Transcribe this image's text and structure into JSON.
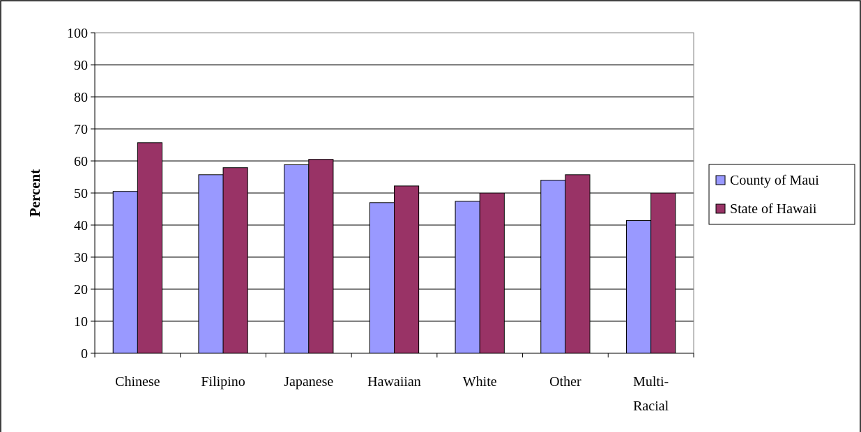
{
  "chart_data": {
    "type": "bar",
    "categories": [
      "Chinese",
      "Filipino",
      "Japanese",
      "Hawaiian",
      "White",
      "Other",
      "Multi-Racial"
    ],
    "category_lines": [
      [
        "Chinese"
      ],
      [
        "Filipino"
      ],
      [
        "Japanese"
      ],
      [
        "Hawaiian"
      ],
      [
        "White"
      ],
      [
        "Other"
      ],
      [
        "Multi-",
        "Racial"
      ]
    ],
    "series": [
      {
        "name": "County of Maui",
        "values": [
          50.5,
          55.7,
          58.8,
          47.0,
          47.4,
          54.0,
          41.4
        ],
        "color": "#9999ff"
      },
      {
        "name": "State of Hawaii",
        "values": [
          65.7,
          57.9,
          60.5,
          52.2,
          50.0,
          55.7,
          50.0
        ],
        "color": "#993366"
      }
    ],
    "xlabel": "",
    "ylabel": "Percent",
    "ylim": [
      0,
      100
    ],
    "yticks": [
      0,
      10,
      20,
      30,
      40,
      50,
      60,
      70,
      80,
      90,
      100
    ],
    "grid": true,
    "legend_position": "right"
  }
}
